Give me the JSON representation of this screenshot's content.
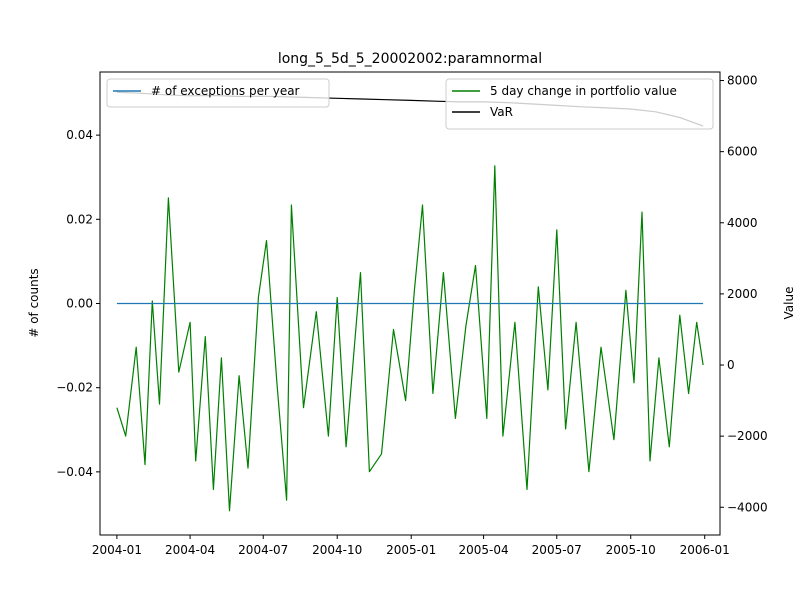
{
  "chart_data": {
    "type": "line",
    "title": "long_5_5d_5_20002002:paramnormal",
    "x_axis": {
      "ticks": [
        "2004-01",
        "2004-04",
        "2004-07",
        "2004-10",
        "2005-01",
        "2005-04",
        "2005-07",
        "2005-10",
        "2006-01"
      ],
      "range": [
        "2003-12-11",
        "2006-01-20"
      ]
    },
    "y_left": {
      "label": "# of counts",
      "range": [
        -0.055,
        0.055
      ],
      "ticks": [
        -0.04,
        -0.02,
        0.0,
        0.02,
        0.04
      ],
      "tick_labels": [
        "−0.04",
        "−0.02",
        "0.00",
        "0.02",
        "0.04"
      ]
    },
    "y_right": {
      "label": "Value",
      "range": [
        -4780,
        8240
      ],
      "ticks": [
        -4000,
        -2000,
        0,
        2000,
        4000,
        6000,
        8000
      ],
      "tick_labels": [
        "−4000",
        "−2000",
        "0",
        "2000",
        "4000",
        "6000",
        "8000"
      ]
    },
    "legends": {
      "left": {
        "placement": "upper-left",
        "entries": [
          {
            "label": "# of exceptions per year",
            "color": "#1f77b4"
          }
        ]
      },
      "right": {
        "placement": "upper-right",
        "entries": [
          {
            "label": "5 day change in portfolio value",
            "color": "#008000"
          },
          {
            "label": "VaR",
            "color": "#000000"
          }
        ]
      }
    },
    "series": [
      {
        "name": "# of exceptions per year",
        "axis": "left",
        "color": "#1f77b4",
        "x": [
          "2004-01-01",
          "2005-12-30"
        ],
        "values": [
          0.0,
          0.0
        ]
      },
      {
        "name": "VaR",
        "axis": "right",
        "color": "#000000",
        "x": [
          "2004-01-01",
          "2004-02-01",
          "2004-03-01",
          "2004-04-01",
          "2004-05-01",
          "2004-06-01",
          "2004-07-01",
          "2004-08-01",
          "2004-09-01",
          "2004-10-01",
          "2004-11-01",
          "2004-12-01",
          "2005-01-01",
          "2005-02-01",
          "2005-03-01",
          "2005-04-01",
          "2005-05-01",
          "2005-06-01",
          "2005-07-01",
          "2005-08-01",
          "2005-09-01",
          "2005-10-01",
          "2005-11-01",
          "2005-12-01",
          "2005-12-30"
        ],
        "values": [
          7670,
          7640,
          7600,
          7570,
          7580,
          7550,
          7560,
          7540,
          7520,
          7500,
          7480,
          7460,
          7440,
          7420,
          7400,
          7400,
          7380,
          7340,
          7300,
          7260,
          7230,
          7200,
          7120,
          6960,
          6720
        ]
      },
      {
        "name": "5 day change in portfolio value",
        "axis": "right",
        "color": "#008000",
        "x": [
          "2004-01-01",
          "2004-01-12",
          "2004-01-25",
          "2004-02-05",
          "2004-02-14",
          "2004-02-23",
          "2004-03-05",
          "2004-03-18",
          "2004-04-01",
          "2004-04-08",
          "2004-04-20",
          "2004-04-30",
          "2004-05-10",
          "2004-05-20",
          "2004-06-01",
          "2004-06-12",
          "2004-06-25",
          "2004-07-05",
          "2004-07-18",
          "2004-07-30",
          "2004-08-05",
          "2004-08-20",
          "2004-09-05",
          "2004-09-20",
          "2004-10-01",
          "2004-10-12",
          "2004-10-30",
          "2004-11-10",
          "2004-11-25",
          "2004-12-10",
          "2004-12-25",
          "2005-01-05",
          "2005-01-15",
          "2005-01-28",
          "2005-02-10",
          "2005-02-25",
          "2005-03-10",
          "2005-03-22",
          "2005-04-05",
          "2005-04-15",
          "2005-04-25",
          "2005-05-10",
          "2005-05-25",
          "2005-06-08",
          "2005-06-20",
          "2005-07-01",
          "2005-07-12",
          "2005-07-25",
          "2005-08-10",
          "2005-08-25",
          "2005-09-10",
          "2005-09-25",
          "2005-10-05",
          "2005-10-15",
          "2005-10-25",
          "2005-11-05",
          "2005-11-18",
          "2005-12-01",
          "2005-12-12",
          "2005-12-22",
          "2005-12-30"
        ],
        "values": [
          -1200,
          -2000,
          500,
          -2800,
          1800,
          -1100,
          4700,
          -200,
          1200,
          -2700,
          800,
          -3500,
          200,
          -4100,
          -300,
          -2900,
          1900,
          3500,
          -500,
          -3800,
          4500,
          -1200,
          1500,
          -2000,
          1900,
          -2300,
          2600,
          -3000,
          -2500,
          1000,
          -1000,
          2100,
          4500,
          -800,
          2600,
          -1500,
          1100,
          2800,
          -1500,
          5600,
          -2000,
          1200,
          -3500,
          2200,
          -700,
          3800,
          -1800,
          1200,
          -3000,
          500,
          -2100,
          2100,
          -500,
          4300,
          -2700,
          200,
          -2300,
          1400,
          -800,
          1200,
          0
        ]
      }
    ]
  }
}
